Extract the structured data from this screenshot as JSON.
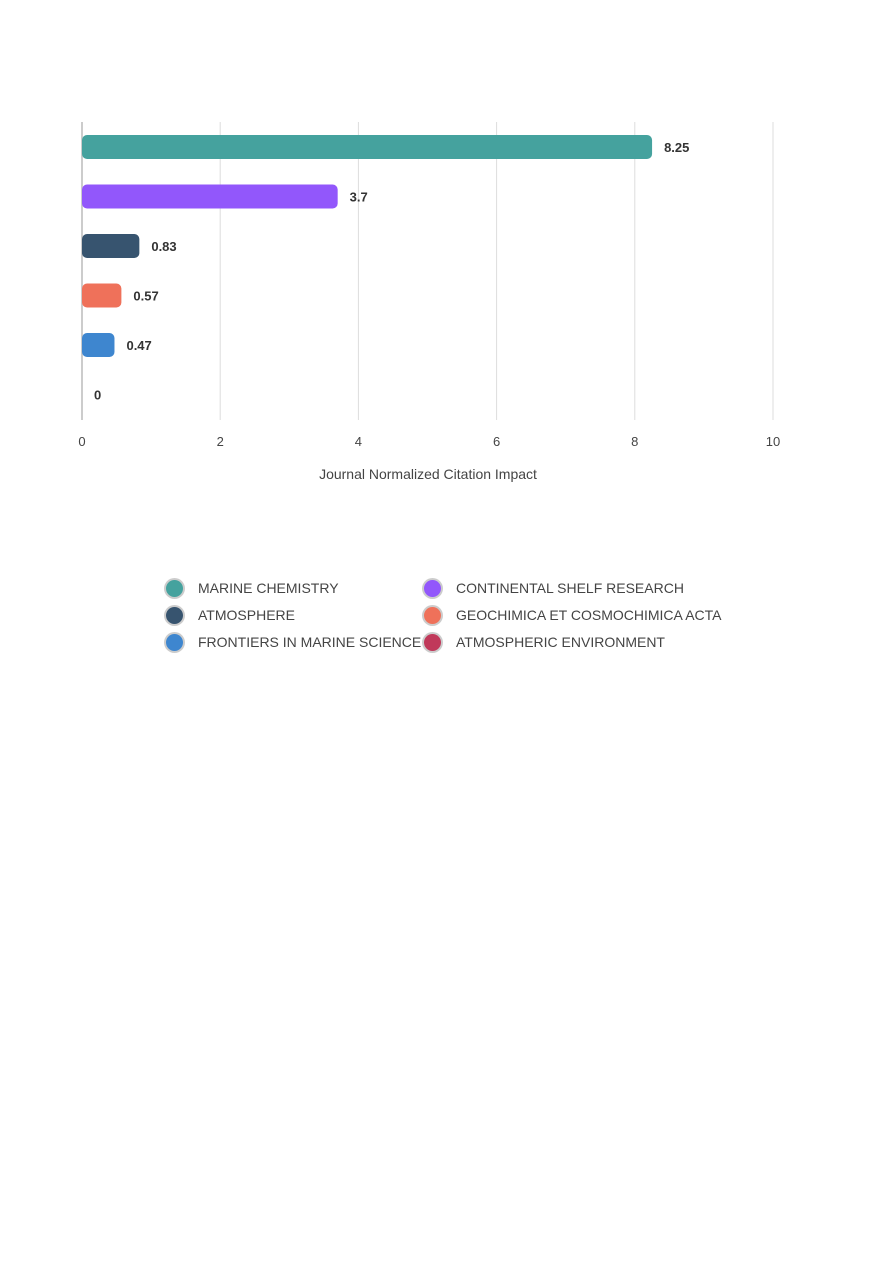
{
  "chart_data": {
    "type": "bar",
    "orientation": "horizontal",
    "categories": [
      "MARINE CHEMISTRY",
      "CONTINENTAL SHELF RESEARCH",
      "ATMOSPHERE",
      "GEOCHIMICA ET COSMOCHIMICA ACTA",
      "FRONTIERS IN MARINE SCIENCE",
      "ATMOSPHERIC ENVIRONMENT"
    ],
    "values": [
      8.25,
      3.7,
      0.83,
      0.57,
      0.47,
      0
    ],
    "data_labels": [
      "8.25",
      "3.7",
      "0.83",
      "0.57",
      "0.47",
      "0"
    ],
    "colors": [
      "#45a29e",
      "#9257fb",
      "#37546f",
      "#ef715a",
      "#3e86cf",
      "#c0395a"
    ],
    "xlabel": "Journal Normalized Citation Impact",
    "xlim": [
      0,
      10
    ],
    "xticks": [
      "0",
      "2",
      "4",
      "6",
      "8",
      "10"
    ],
    "grid": "vertical",
    "legend_position": "bottom"
  }
}
